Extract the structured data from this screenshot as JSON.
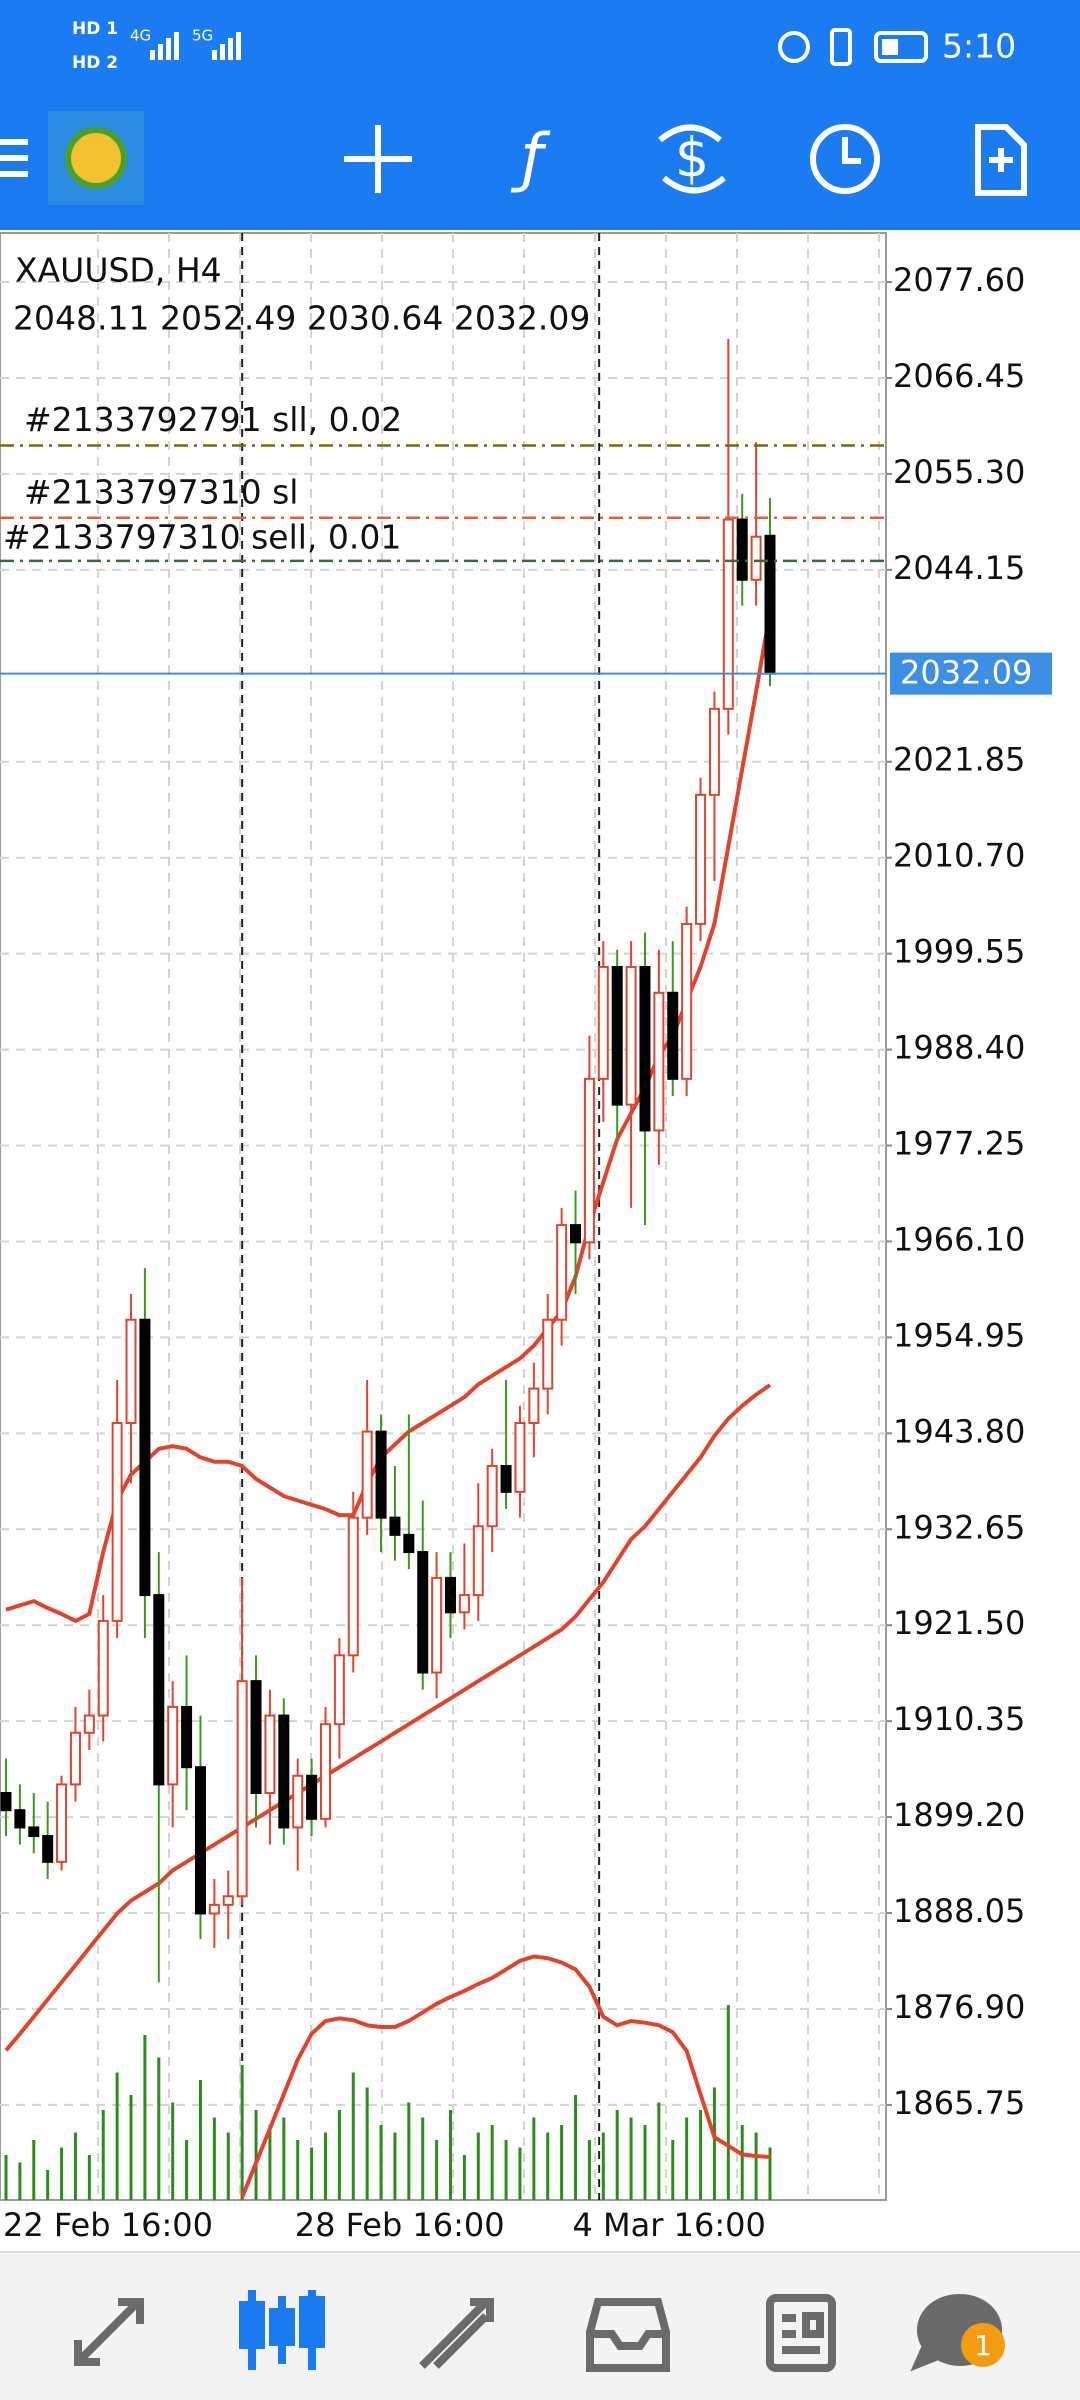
{
  "status_bar": {
    "sim1": "HD 1",
    "sim2": "HD 2",
    "net1": "4G",
    "net2": "5G",
    "time": "5:10"
  },
  "chart_data": {
    "type": "candlestick",
    "title": "XAUUSD, H4",
    "ohlc_text": "2048.11 2052.49 2030.64 2032.09",
    "categories": [
      "22 Feb 16:00",
      null,
      null,
      null,
      null,
      null,
      null,
      null,
      null,
      null,
      null,
      null,
      null,
      null,
      null,
      null,
      null,
      null,
      null,
      null,
      null,
      "28 Feb 16:00",
      null,
      null,
      null,
      null,
      null,
      null,
      null,
      null,
      null,
      null,
      null,
      null,
      null,
      null,
      null,
      null,
      null,
      null,
      null,
      "4 Mar 16:00",
      null,
      null,
      null,
      null,
      null,
      null,
      null,
      null,
      null,
      null,
      null,
      null,
      null,
      null
    ],
    "open": [
      1902,
      1900,
      1898,
      1897,
      1894,
      1903,
      1909,
      1911,
      1922,
      1945,
      1957,
      1925,
      1903,
      1912,
      1905,
      1888,
      1889,
      1890,
      1915,
      1902,
      1911,
      1898,
      1904,
      1899,
      1910,
      1918,
      1934,
      1944,
      1934,
      1932,
      1930,
      1916,
      1927,
      1923,
      1925,
      1933,
      1940,
      1937,
      1945,
      1949,
      1957,
      1968,
      1966,
      1985,
      1998,
      1982,
      1998,
      1979,
      1995,
      1985,
      2003,
      2018,
      2028,
      2050,
      2043,
      2048.11
    ],
    "high": [
      1906,
      1903,
      1902,
      1901,
      1904,
      1912,
      1914,
      1925,
      1950,
      1960,
      1963,
      1930,
      1915,
      1918,
      1911,
      1892,
      1893,
      1927,
      1918,
      1914,
      1913,
      1906,
      1906,
      1912,
      1920,
      1937,
      1950,
      1946,
      1940,
      1946,
      1936,
      1930,
      1930,
      1931,
      1938,
      1942,
      1950,
      1947,
      1952,
      1960,
      1970,
      1972,
      1990,
      2001,
      2000,
      2001,
      2002,
      2000,
      2001,
      2005,
      2020,
      2030,
      2071,
      2053,
      2059,
      2052.49
    ],
    "low": [
      1897,
      1896,
      1895,
      1892,
      1893,
      1901,
      1907,
      1908,
      1920,
      1938,
      1920,
      1880,
      1898,
      1900,
      1885,
      1884,
      1885,
      1889,
      1898,
      1896,
      1896,
      1893,
      1897,
      1898,
      1906,
      1916,
      1932,
      1930,
      1929,
      1928,
      1914,
      1913,
      1920,
      1921,
      1922,
      1930,
      1935,
      1934,
      1941,
      1946,
      1954,
      1960,
      1964,
      1980,
      1978,
      1970,
      1968,
      1975,
      1983,
      1983,
      2001,
      2008,
      2025,
      2040,
      2040,
      2030.64
    ],
    "close": [
      1900,
      1898,
      1897,
      1894,
      1903,
      1909,
      1911,
      1922,
      1945,
      1957,
      1925,
      1903,
      1912,
      1905,
      1888,
      1889,
      1890,
      1915,
      1902,
      1911,
      1898,
      1904,
      1899,
      1910,
      1918,
      1934,
      1944,
      1934,
      1932,
      1930,
      1916,
      1927,
      1923,
      1925,
      1933,
      1940,
      1937,
      1945,
      1949,
      1957,
      1968,
      1966,
      1985,
      1998,
      1982,
      1998,
      1979,
      1995,
      1985,
      2003,
      2018,
      2028,
      2050,
      2043,
      2048,
      2032.09
    ],
    "volume": [
      30,
      25,
      40,
      20,
      35,
      45,
      30,
      60,
      85,
      70,
      110,
      95,
      65,
      40,
      80,
      55,
      45,
      90,
      60,
      50,
      55,
      40,
      35,
      45,
      60,
      85,
      75,
      50,
      45,
      65,
      55,
      40,
      60,
      30,
      45,
      50,
      40,
      35,
      55,
      45,
      50,
      70,
      40,
      45,
      60,
      55,
      50,
      65,
      40,
      55,
      60,
      75,
      130,
      50,
      45,
      35
    ],
    "bands": [
      {
        "color": "#e0442c",
        "values": [
          1923.3,
          1923.8,
          1924.3,
          1923.5,
          1922.8,
          1922,
          1922.8,
          1930,
          1936,
          1939,
          1940.5,
          1942,
          1942.3,
          1942,
          1941,
          1940.5,
          1940.5,
          1940,
          1938.5,
          1937.5,
          1936.5,
          1936,
          1935.5,
          1935,
          1934.3,
          1934.3,
          1938,
          1941,
          1942.5,
          1944,
          1945,
          1946,
          1947,
          1948,
          1949.5,
          1950.5,
          1951.5,
          1952.5,
          1954,
          1956,
          1958,
          1962,
          1968,
          1973,
          1978,
          1981,
          1984,
          1987.7,
          1990,
          1994,
          1998,
          2003,
          2012,
          2021,
          2030,
          2039.2
        ]
      },
      {
        "color": "#e0442c",
        "values": [
          1872.1,
          1874,
          1876,
          1878,
          1880,
          1882,
          1884,
          1886,
          1888,
          1889.5,
          1890.5,
          1891.5,
          1893,
          1894,
          1895,
          1896,
          1897,
          1898,
          1899,
          1900,
          1901,
          1902,
          1903,
          1904,
          1905,
          1906,
          1907,
          1908,
          1909,
          1910,
          1911,
          1912,
          1913,
          1914,
          1915,
          1916,
          1917,
          1918,
          1919,
          1920,
          1921,
          1922.5,
          1924.5,
          1926.5,
          1929,
          1931.5,
          1933,
          1935,
          1937,
          1939,
          1941,
          1943.5,
          1945.5,
          1947,
          1948.3,
          1949.4
        ]
      },
      {
        "color": "#e0442c",
        "values": [
          null,
          null,
          null,
          null,
          null,
          null,
          null,
          null,
          null,
          null,
          null,
          null,
          null,
          null,
          null,
          null,
          null,
          1855,
          1859,
          1863,
          1867,
          1871,
          1874,
          1875.5,
          1875.8,
          1875.6,
          1875,
          1874.8,
          1874.8,
          1875.5,
          1876.5,
          1877.5,
          1878.3,
          1879,
          1879.8,
          1880.5,
          1881.5,
          1882.5,
          1883,
          1882.8,
          1882.3,
          1881.5,
          1879.5,
          1876,
          1875,
          1875.5,
          1875.3,
          1875,
          1874.2,
          1872,
          1867,
          1862,
          1861,
          1860,
          1859.8,
          1859.7
        ]
      }
    ],
    "bull_color": "#e0442c",
    "bear_color": "#000000",
    "bear_wick_color": "#3a9a1a",
    "volume_color": "#2e8b1e",
    "order_lines": [
      {
        "label": "#2133792791 sll, 0.02",
        "price": 2058.6,
        "color": "#7a6a00"
      },
      {
        "label": "#2133797310 sl",
        "price": 2050.2,
        "color": "#e0603c"
      },
      {
        "label": "#2133797310 sell, 0.01",
        "price": 2045.2,
        "color": "#2f6f3a"
      }
    ],
    "bid": 2032.09,
    "bid_color": "#3d8fe6",
    "ylim": [
      1854.7,
      2083.3
    ],
    "yticks": [
      {
        "value": 2077.6,
        "label": "2077.60"
      },
      2066.45,
      {
        "value": 2055.3,
        "label": "2055.30"
      },
      2044.15,
      2021.85,
      {
        "value": 2010.7,
        "label": "2010.70"
      },
      1999.55,
      {
        "value": 1988.4,
        "label": "1988.40"
      },
      1977.25,
      {
        "value": 1966.1,
        "label": "1966.10"
      },
      1954.95,
      {
        "value": 1943.8,
        "label": "1943.80"
      },
      1932.65,
      {
        "value": 1921.5,
        "label": "1921.50"
      },
      1910.35,
      {
        "value": 1899.2,
        "label": "1899.20"
      },
      1888.05,
      {
        "value": 1876.9,
        "label": "1876.90"
      },
      1865.75
    ],
    "grid": true
  },
  "bottom_nav": {
    "chat_badge": 1
  }
}
